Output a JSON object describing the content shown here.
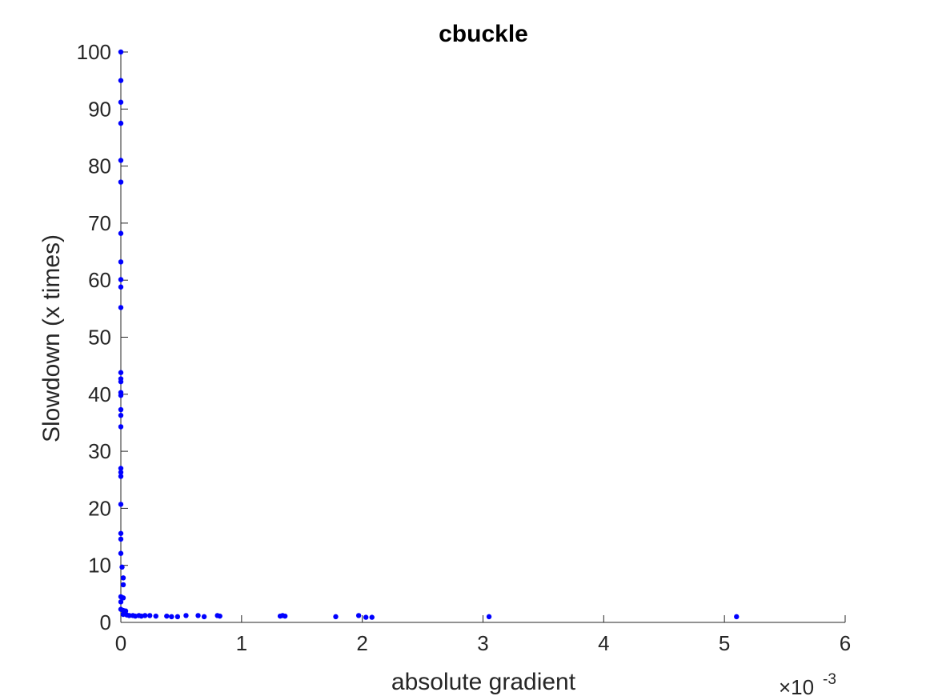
{
  "chart_data": {
    "type": "scatter",
    "title": "cbuckle",
    "xlabel": "absolute gradient",
    "ylabel": "Slowdown (x times)",
    "x_exponent_label": "×10",
    "x_exponent_power": "-3",
    "xlim": [
      0,
      6
    ],
    "ylim": [
      0,
      100
    ],
    "x_ticks": [
      0,
      1,
      2,
      3,
      4,
      5,
      6
    ],
    "y_ticks": [
      0,
      10,
      20,
      30,
      40,
      50,
      60,
      70,
      80,
      90,
      100
    ],
    "grid": false,
    "legend": "none",
    "marker_color": "#0000ff",
    "points": [
      [
        0.0,
        100.0
      ],
      [
        0.0,
        95.0
      ],
      [
        0.0,
        91.2
      ],
      [
        0.0,
        87.5
      ],
      [
        0.0,
        81.0
      ],
      [
        0.0,
        77.2
      ],
      [
        0.0,
        68.2
      ],
      [
        0.0,
        63.2
      ],
      [
        0.0,
        60.1
      ],
      [
        0.0,
        58.8
      ],
      [
        0.0,
        55.2
      ],
      [
        0.0,
        43.8
      ],
      [
        0.0,
        42.7
      ],
      [
        0.0,
        42.2
      ],
      [
        0.0,
        40.3
      ],
      [
        0.0,
        39.8
      ],
      [
        0.0,
        37.3
      ],
      [
        0.0,
        36.3
      ],
      [
        0.0,
        34.3
      ],
      [
        0.0,
        27.0
      ],
      [
        0.0,
        26.3
      ],
      [
        0.0,
        25.6
      ],
      [
        0.0,
        20.7
      ],
      [
        0.0,
        15.6
      ],
      [
        0.0,
        14.6
      ],
      [
        0.0,
        12.1
      ],
      [
        0.01,
        9.7
      ],
      [
        0.02,
        7.8
      ],
      [
        0.02,
        6.6
      ],
      [
        0.0,
        4.5
      ],
      [
        0.02,
        4.3
      ],
      [
        0.0,
        3.6
      ],
      [
        0.0,
        2.3
      ],
      [
        0.02,
        2.1
      ],
      [
        0.04,
        2.0
      ],
      [
        0.02,
        1.4
      ],
      [
        0.05,
        1.3
      ],
      [
        0.07,
        1.2
      ],
      [
        0.1,
        1.2
      ],
      [
        0.12,
        1.1
      ],
      [
        0.15,
        1.2
      ],
      [
        0.17,
        1.1
      ],
      [
        0.2,
        1.2
      ],
      [
        0.24,
        1.2
      ],
      [
        0.29,
        1.1
      ],
      [
        0.38,
        1.1
      ],
      [
        0.42,
        1.0
      ],
      [
        0.47,
        1.0
      ],
      [
        0.54,
        1.2
      ],
      [
        0.64,
        1.2
      ],
      [
        0.69,
        1.0
      ],
      [
        0.8,
        1.2
      ],
      [
        0.82,
        1.1
      ],
      [
        1.32,
        1.1
      ],
      [
        1.34,
        1.2
      ],
      [
        1.36,
        1.1
      ],
      [
        1.78,
        1.0
      ],
      [
        1.97,
        1.2
      ],
      [
        2.03,
        0.9
      ],
      [
        2.08,
        0.9
      ],
      [
        3.05,
        1.0
      ],
      [
        5.1,
        1.0
      ]
    ]
  }
}
